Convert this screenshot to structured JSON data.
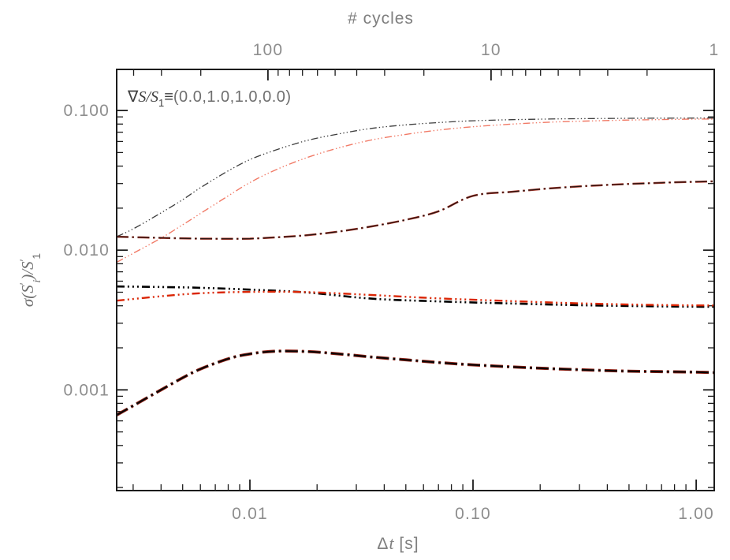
{
  "page": {
    "background": "#ffffff"
  },
  "chart_data": {
    "type": "line",
    "title": "",
    "xscale": "log",
    "yscale": "log",
    "grid": false,
    "legend": "none",
    "xlabel": "Δt [s]",
    "xlabel_parts": {
      "delta": "Δ",
      "t": "t",
      "unit": " [s]"
    },
    "ylabel": "σ(S′i)/S′1",
    "ylabel_parts": {
      "a": "σ(S",
      "p1": "′",
      "i": "i",
      "b": ")/S",
      "p2": "′",
      "one": "1"
    },
    "annotation": "∇S/S1≡(0.0,1.0,1.0,0.0)",
    "annotation_parts": {
      "nabla": "∇",
      "ss": "S/S",
      "sub": "1",
      "equiv": "≡",
      "values": "(0.0,1.0,1.0,0.0)"
    },
    "top_axis": {
      "label": "# cycles",
      "total_time_s": 1.205,
      "ticks": [
        {
          "v": 100,
          "label": "100"
        },
        {
          "v": 10,
          "label": "10"
        },
        {
          "v": 1,
          "label": "1"
        }
      ]
    },
    "xlim": [
      0.00253,
      1.205
    ],
    "ylim": [
      0.00019,
      0.197
    ],
    "x_ticks": [
      {
        "v": 0.01,
        "label": "0.01"
      },
      {
        "v": 0.1,
        "label": "0.10"
      },
      {
        "v": 1.0,
        "label": "1.00"
      }
    ],
    "y_ticks": [
      {
        "v": 0.001,
        "label": "0.001"
      },
      {
        "v": 0.01,
        "label": "0.010"
      },
      {
        "v": 0.1,
        "label": "0.100"
      }
    ],
    "axis_color": "#1c1c1c",
    "tick_label_color": "#8e8e8e",
    "series": [
      {
        "name": "upper-black-dash3dot",
        "dash": "9 3 1.4 3 1.4 3 1.4 3",
        "layers": [
          {
            "color": "#3d3d3d",
            "width": 1.3
          }
        ],
        "points": [
          [
            0.00253,
            0.0125
          ],
          [
            0.003,
            0.0142
          ],
          [
            0.004,
            0.0185
          ],
          [
            0.005,
            0.023
          ],
          [
            0.006,
            0.028
          ],
          [
            0.008,
            0.037
          ],
          [
            0.01,
            0.0445
          ],
          [
            0.013,
            0.052
          ],
          [
            0.018,
            0.061
          ],
          [
            0.025,
            0.068
          ],
          [
            0.035,
            0.0745
          ],
          [
            0.05,
            0.079
          ],
          [
            0.07,
            0.082
          ],
          [
            0.1,
            0.0845
          ],
          [
            0.15,
            0.086
          ],
          [
            0.22,
            0.087
          ],
          [
            0.32,
            0.0875
          ],
          [
            0.5,
            0.088
          ],
          [
            0.7,
            0.0882
          ],
          [
            1.0,
            0.0883
          ],
          [
            1.2,
            0.0883
          ]
        ]
      },
      {
        "name": "upper-red-dash3dot",
        "dash": "9 3 1.4 3 1.4 3 1.4 3",
        "layers": [
          {
            "color": "#f17a66",
            "width": 1.4
          }
        ],
        "points": [
          [
            0.00253,
            0.0082
          ],
          [
            0.003,
            0.0095
          ],
          [
            0.004,
            0.0122
          ],
          [
            0.005,
            0.0152
          ],
          [
            0.006,
            0.0183
          ],
          [
            0.008,
            0.0245
          ],
          [
            0.01,
            0.0305
          ],
          [
            0.013,
            0.0375
          ],
          [
            0.018,
            0.046
          ],
          [
            0.025,
            0.054
          ],
          [
            0.035,
            0.0615
          ],
          [
            0.05,
            0.0675
          ],
          [
            0.07,
            0.0725
          ],
          [
            0.1,
            0.0765
          ],
          [
            0.15,
            0.08
          ],
          [
            0.22,
            0.0825
          ],
          [
            0.32,
            0.084
          ],
          [
            0.5,
            0.0855
          ],
          [
            0.7,
            0.0862
          ],
          [
            1.0,
            0.0868
          ],
          [
            1.2,
            0.087
          ]
        ]
      },
      {
        "name": "mid-darkred-longdash",
        "dash": "15 4.5 2.5 4.5",
        "layers": [
          {
            "color": "#a83326",
            "width": 2.5
          },
          {
            "color": "#241411",
            "width": 1.2
          }
        ],
        "points": [
          [
            0.00253,
            0.0125
          ],
          [
            0.004,
            0.01225
          ],
          [
            0.006,
            0.0121
          ],
          [
            0.008,
            0.01208
          ],
          [
            0.01,
            0.0121
          ],
          [
            0.013,
            0.01235
          ],
          [
            0.018,
            0.0128
          ],
          [
            0.025,
            0.0136
          ],
          [
            0.035,
            0.0148
          ],
          [
            0.05,
            0.0165
          ],
          [
            0.07,
            0.019
          ],
          [
            0.1,
            0.0245
          ],
          [
            0.15,
            0.0262
          ],
          [
            0.22,
            0.0277
          ],
          [
            0.32,
            0.0288
          ],
          [
            0.5,
            0.0298
          ],
          [
            0.7,
            0.0304
          ],
          [
            1.0,
            0.0309
          ],
          [
            1.2,
            0.0311
          ]
        ]
      },
      {
        "name": "middle-black-dash3dot",
        "dash": "10 4 2 4 2 4 2 4",
        "layers": [
          {
            "color": "#000000",
            "width": 2.6
          }
        ],
        "points": [
          [
            0.00253,
            0.0055
          ],
          [
            0.004,
            0.00545
          ],
          [
            0.006,
            0.00538
          ],
          [
            0.01,
            0.00522
          ],
          [
            0.018,
            0.00498
          ],
          [
            0.035,
            0.0045
          ],
          [
            0.07,
            0.0043
          ],
          [
            0.15,
            0.00415
          ],
          [
            0.32,
            0.00403
          ],
          [
            0.7,
            0.00396
          ],
          [
            1.2,
            0.00393
          ]
        ]
      },
      {
        "name": "middle-red-dash3dot",
        "dash": "10 4 2 4 2 4 2 4",
        "layers": [
          {
            "color": "#da2605",
            "width": 2.4
          }
        ],
        "points": [
          [
            0.00253,
            0.00435
          ],
          [
            0.004,
            0.00468
          ],
          [
            0.006,
            0.00492
          ],
          [
            0.01,
            0.00503
          ],
          [
            0.018,
            0.00501
          ],
          [
            0.035,
            0.00478
          ],
          [
            0.07,
            0.00452
          ],
          [
            0.15,
            0.00432
          ],
          [
            0.32,
            0.00415
          ],
          [
            0.7,
            0.00405
          ],
          [
            1.2,
            0.00402
          ]
        ]
      },
      {
        "name": "lower-dark-longdash",
        "dash": "16 5 3 5",
        "layers": [
          {
            "color": "#8f2115",
            "width": 3.8
          },
          {
            "color": "#060606",
            "width": 2.0
          }
        ],
        "points": [
          [
            0.00253,
            0.00066
          ],
          [
            0.003,
            0.00077
          ],
          [
            0.004,
            0.001
          ],
          [
            0.005,
            0.00122
          ],
          [
            0.006,
            0.00141
          ],
          [
            0.008,
            0.00167
          ],
          [
            0.01,
            0.00181
          ],
          [
            0.013,
            0.00189
          ],
          [
            0.018,
            0.00188
          ],
          [
            0.025,
            0.00181
          ],
          [
            0.035,
            0.00172
          ],
          [
            0.05,
            0.00164
          ],
          [
            0.07,
            0.00157
          ],
          [
            0.1,
            0.00151
          ],
          [
            0.15,
            0.00146
          ],
          [
            0.22,
            0.00142
          ],
          [
            0.32,
            0.00139
          ],
          [
            0.5,
            0.00136
          ],
          [
            0.7,
            0.00135
          ],
          [
            1.0,
            0.00134
          ],
          [
            1.2,
            0.00133
          ]
        ]
      }
    ]
  }
}
